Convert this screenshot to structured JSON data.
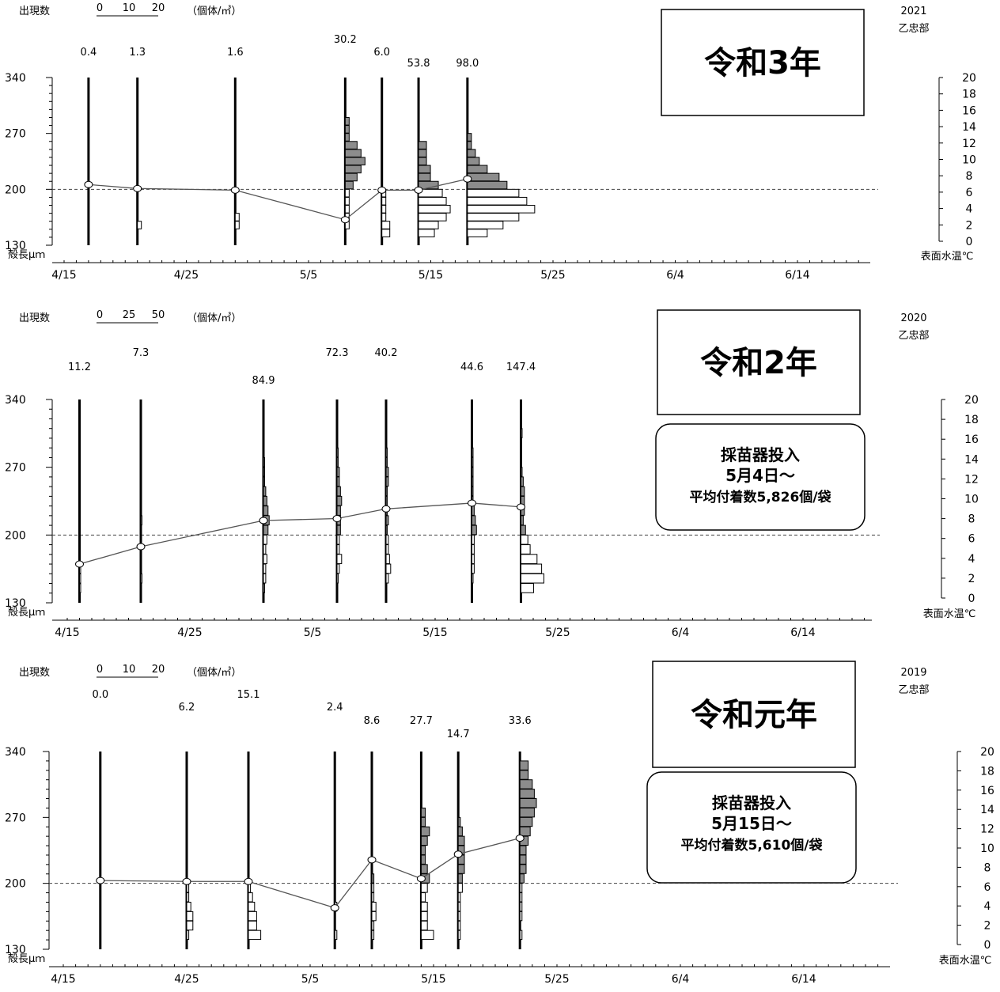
{
  "chart_data": [
    {
      "type": "histogram-timeline",
      "year_label": "2021",
      "location": "乙忠部",
      "era_label": "令和3年",
      "legend": {
        "title": "出現数",
        "scale": [
          "0",
          "10",
          "20"
        ],
        "unit": "（個体/㎥）"
      },
      "y_left": {
        "label": "殻長μｍ",
        "ticks": [
          "130",
          "200",
          "270",
          "340"
        ],
        "range": [
          130,
          340
        ]
      },
      "y_right": {
        "label": "表面水温℃",
        "ticks": [
          "0",
          "2",
          "4",
          "6",
          "8",
          "10",
          "12",
          "14",
          "16",
          "18",
          "20"
        ],
        "range": [
          0,
          20
        ]
      },
      "x": {
        "ticks": [
          "4/15",
          "4/25",
          "5/5",
          "5/15",
          "5/25",
          "6/4",
          "6/14"
        ],
        "range_days": [
          -1,
          68
        ]
      },
      "reference_line": 200,
      "samples": [
        {
          "date": "4/17",
          "count": "0.4",
          "mean": 206,
          "histogram": []
        },
        {
          "date": "4/21",
          "count": "1.3",
          "mean": 201,
          "histogram": [
            [
              150,
              1
            ]
          ]
        },
        {
          "date": "4/29",
          "count": "1.6",
          "mean": 199,
          "histogram": [
            [
              160,
              1
            ],
            [
              150,
              1
            ]
          ]
        },
        {
          "date": "5/8",
          "count": "30.2",
          "mean": 162,
          "histogram": [
            [
              280,
              1
            ],
            [
              270,
              1
            ],
            [
              260,
              1
            ],
            [
              250,
              3
            ],
            [
              240,
              4
            ],
            [
              230,
              5
            ],
            [
              220,
              4
            ],
            [
              210,
              3
            ],
            [
              200,
              2
            ],
            [
              190,
              1
            ],
            [
              180,
              1
            ],
            [
              170,
              1
            ],
            [
              160,
              1
            ],
            [
              150,
              1
            ]
          ]
        },
        {
          "date": "5/11",
          "count": "6.0",
          "mean": 199,
          "histogram": [
            [
              190,
              1
            ],
            [
              180,
              1
            ],
            [
              170,
              1
            ],
            [
              160,
              1
            ],
            [
              150,
              2
            ],
            [
              140,
              2
            ]
          ]
        },
        {
          "date": "5/14",
          "count": "53.8",
          "mean": 199,
          "histogram": [
            [
              250,
              2
            ],
            [
              240,
              2
            ],
            [
              230,
              2
            ],
            [
              220,
              3
            ],
            [
              210,
              3
            ],
            [
              200,
              5
            ],
            [
              190,
              6
            ],
            [
              180,
              7
            ],
            [
              170,
              8
            ],
            [
              160,
              7
            ],
            [
              150,
              5
            ],
            [
              140,
              4
            ]
          ]
        },
        {
          "date": "5/18",
          "count": "98.0",
          "mean": 213,
          "histogram": [
            [
              260,
              1
            ],
            [
              250,
              1
            ],
            [
              240,
              2
            ],
            [
              230,
              3
            ],
            [
              220,
              5
            ],
            [
              210,
              8
            ],
            [
              200,
              10
            ],
            [
              190,
              13
            ],
            [
              180,
              15
            ],
            [
              170,
              17
            ],
            [
              160,
              13
            ],
            [
              150,
              9
            ],
            [
              140,
              5
            ]
          ]
        }
      ]
    },
    {
      "type": "histogram-timeline",
      "year_label": "2020",
      "location": "乙忠部",
      "era_label": "令和2年",
      "note": [
        "採苗器投入",
        "5月4日～",
        "平均付着数5,826個/袋"
      ],
      "legend": {
        "title": "出現数",
        "scale": [
          "0",
          "25",
          "50"
        ],
        "unit": "（個体/㎥）"
      },
      "y_left": {
        "label": "殻長μｍ",
        "ticks": [
          "130",
          "200",
          "270",
          "340"
        ],
        "range": [
          130,
          340
        ]
      },
      "y_right": {
        "label": "表面水温℃",
        "ticks": [
          "0",
          "2",
          "4",
          "6",
          "8",
          "10",
          "12",
          "14",
          "16",
          "18",
          "20"
        ],
        "range": [
          0,
          20
        ]
      },
      "x": {
        "ticks": [
          "4/15",
          "4/25",
          "5/5",
          "5/15",
          "5/25",
          "6/4",
          "6/14"
        ],
        "range_days": [
          -1,
          68
        ]
      },
      "reference_line": 200,
      "samples": [
        {
          "date": "4/16",
          "count": "11.2",
          "mean": 170,
          "histogram": [
            [
              160,
              1
            ],
            [
              150,
              1
            ],
            [
              140,
              1
            ]
          ]
        },
        {
          "date": "4/21",
          "count": "7.3",
          "mean": 188,
          "histogram": [
            [
              210,
              1
            ],
            [
              150,
              1
            ]
          ]
        },
        {
          "date": "5/1",
          "count": "84.9",
          "mean": 215,
          "histogram": [
            [
              270,
              1
            ],
            [
              260,
              1
            ],
            [
              250,
              1
            ],
            [
              240,
              2
            ],
            [
              230,
              3
            ],
            [
              220,
              4
            ],
            [
              210,
              5
            ],
            [
              200,
              4
            ],
            [
              190,
              3
            ],
            [
              180,
              2
            ],
            [
              170,
              3
            ],
            [
              160,
              2
            ],
            [
              150,
              2
            ],
            [
              140,
              1
            ]
          ]
        },
        {
          "date": "5/7",
          "count": "72.3",
          "mean": 217,
          "histogram": [
            [
              280,
              1
            ],
            [
              270,
              1
            ],
            [
              260,
              2
            ],
            [
              250,
              2
            ],
            [
              240,
              3
            ],
            [
              230,
              4
            ],
            [
              220,
              3
            ],
            [
              210,
              3
            ],
            [
              200,
              3
            ],
            [
              190,
              2
            ],
            [
              180,
              2
            ],
            [
              170,
              4
            ],
            [
              160,
              2
            ],
            [
              150,
              1
            ]
          ]
        },
        {
          "date": "5/11",
          "count": "40.2",
          "mean": 227,
          "histogram": [
            [
              280,
              1
            ],
            [
              270,
              1
            ],
            [
              260,
              2
            ],
            [
              250,
              2
            ],
            [
              240,
              1
            ],
            [
              230,
              1
            ],
            [
              220,
              1
            ],
            [
              210,
              2
            ],
            [
              200,
              1
            ],
            [
              190,
              2
            ],
            [
              180,
              2
            ],
            [
              170,
              3
            ],
            [
              160,
              4
            ],
            [
              150,
              2
            ]
          ]
        },
        {
          "date": "5/18",
          "count": "44.6",
          "mean": 233,
          "histogram": [
            [
              280,
              1
            ],
            [
              270,
              1
            ],
            [
              260,
              1
            ],
            [
              250,
              1
            ],
            [
              240,
              1
            ],
            [
              230,
              1
            ],
            [
              220,
              2
            ],
            [
              210,
              3
            ],
            [
              200,
              4
            ],
            [
              190,
              2
            ],
            [
              180,
              2
            ],
            [
              170,
              2
            ],
            [
              160,
              2
            ],
            [
              150,
              1
            ]
          ]
        },
        {
          "date": "5/22",
          "count": "147.4",
          "mean": 229,
          "histogram": [
            [
              300,
              1
            ],
            [
              260,
              1
            ],
            [
              250,
              2
            ],
            [
              240,
              3
            ],
            [
              230,
              3
            ],
            [
              220,
              3
            ],
            [
              210,
              2
            ],
            [
              200,
              4
            ],
            [
              190,
              6
            ],
            [
              180,
              8
            ],
            [
              170,
              14
            ],
            [
              160,
              18
            ],
            [
              150,
              20
            ],
            [
              140,
              11
            ]
          ]
        }
      ]
    },
    {
      "type": "histogram-timeline",
      "year_label": "2019",
      "location": "乙忠部",
      "era_label": "令和元年",
      "note": [
        "採苗器投入",
        "5月15日～",
        "平均付着数5,610個/袋"
      ],
      "legend": {
        "title": "出現数",
        "scale": [
          "0",
          "10",
          "20"
        ],
        "unit": "（個体/㎥）"
      },
      "y_left": {
        "label": "殻長μｍ",
        "ticks": [
          "130",
          "200",
          "270",
          "340"
        ],
        "range": [
          130,
          340
        ]
      },
      "y_right": {
        "label": "表面水温℃",
        "ticks": [
          "0",
          "2",
          "4",
          "6",
          "8",
          "10",
          "12",
          "14",
          "16",
          "18",
          "20"
        ],
        "range": [
          0,
          20
        ]
      },
      "x": {
        "ticks": [
          "4/15",
          "4/25",
          "5/5",
          "5/15",
          "5/25",
          "6/4",
          "6/14"
        ],
        "range_days": [
          -1,
          68
        ]
      },
      "reference_line": 200,
      "samples": [
        {
          "date": "4/18",
          "count": "0.0",
          "mean": 203,
          "histogram": []
        },
        {
          "date": "4/25",
          "count": "6.2",
          "mean": 202,
          "histogram": [
            [
              190,
              1
            ],
            [
              180,
              1
            ],
            [
              170,
              2
            ],
            [
              160,
              3
            ],
            [
              150,
              3
            ],
            [
              140,
              1
            ]
          ]
        },
        {
          "date": "4/30",
          "count": "15.1",
          "mean": 202,
          "histogram": [
            [
              190,
              1
            ],
            [
              180,
              2
            ],
            [
              170,
              3
            ],
            [
              160,
              4
            ],
            [
              150,
              4
            ],
            [
              140,
              6
            ]
          ]
        },
        {
          "date": "5/7",
          "count": "2.4",
          "mean": 174,
          "histogram": [
            [
              170,
              1
            ],
            [
              140,
              1
            ]
          ]
        },
        {
          "date": "5/10",
          "count": "8.6",
          "mean": 225,
          "histogram": [
            [
              200,
              1
            ],
            [
              190,
              1
            ],
            [
              180,
              1
            ],
            [
              170,
              2
            ],
            [
              160,
              2
            ],
            [
              150,
              1
            ],
            [
              140,
              1
            ]
          ]
        },
        {
          "date": "5/14",
          "count": "27.7",
          "mean": 205,
          "histogram": [
            [
              270,
              2
            ],
            [
              260,
              2
            ],
            [
              250,
              4
            ],
            [
              240,
              3
            ],
            [
              230,
              2
            ],
            [
              220,
              2
            ],
            [
              210,
              3
            ],
            [
              200,
              4
            ],
            [
              190,
              3
            ],
            [
              180,
              2
            ],
            [
              170,
              3
            ],
            [
              160,
              3
            ],
            [
              150,
              3
            ],
            [
              140,
              6
            ]
          ]
        },
        {
          "date": "5/17",
          "count": "14.7",
          "mean": 231,
          "histogram": [
            [
              260,
              1
            ],
            [
              250,
              2
            ],
            [
              240,
              3
            ],
            [
              230,
              3
            ],
            [
              220,
              3
            ],
            [
              210,
              3
            ],
            [
              200,
              2
            ],
            [
              190,
              2
            ],
            [
              180,
              1
            ],
            [
              170,
              1
            ],
            [
              160,
              1
            ],
            [
              150,
              1
            ],
            [
              140,
              1
            ]
          ]
        },
        {
          "date": "5/22",
          "count": "33.6",
          "mean": 248,
          "histogram": [
            [
              320,
              4
            ],
            [
              310,
              4
            ],
            [
              300,
              6
            ],
            [
              290,
              7
            ],
            [
              280,
              8
            ],
            [
              270,
              7
            ],
            [
              260,
              6
            ],
            [
              250,
              5
            ],
            [
              240,
              4
            ],
            [
              230,
              3
            ],
            [
              220,
              3
            ],
            [
              210,
              3
            ],
            [
              200,
              2
            ],
            [
              190,
              1
            ],
            [
              180,
              1
            ],
            [
              170,
              1
            ],
            [
              160,
              1
            ],
            [
              140,
              1
            ]
          ]
        }
      ]
    }
  ]
}
